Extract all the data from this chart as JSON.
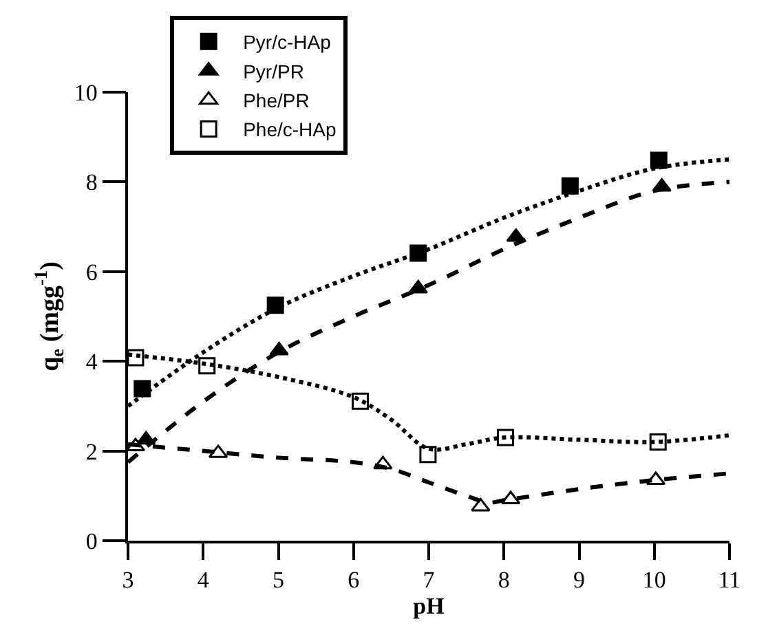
{
  "chart_data": {
    "type": "scatter",
    "xlabel": "pH",
    "ylabel": "q$_{e}$ (mgg$^{-1}$)",
    "xlim": [
      3,
      11
    ],
    "xticks": [
      3,
      4,
      5,
      6,
      7,
      8,
      9,
      10,
      11
    ],
    "ylim": [
      0,
      10
    ],
    "yticks": [
      0,
      2,
      4,
      6,
      8,
      10
    ],
    "legend": "top left",
    "series": [
      {
        "name": "Pyr/c-HAp",
        "marker": "square",
        "color": "#000000",
        "x": [
          3.19,
          4.96,
          6.86,
          8.88,
          10.06
        ],
        "values": [
          3.39,
          5.25,
          6.41,
          7.91,
          8.48
        ]
      },
      {
        "name": "Pyr/PR",
        "marker": "triangle",
        "color": "#000000",
        "x": [
          3.24,
          5.01,
          6.86,
          8.16,
          10.1
        ],
        "values": [
          2.25,
          4.24,
          5.62,
          6.77,
          7.89
        ]
      },
      {
        "name": "Phe/PR",
        "marker": "triangle",
        "color": "#ffffff",
        "x": [
          3.1,
          4.2,
          6.39,
          7.69,
          8.09,
          10.02
        ],
        "values": [
          2.1,
          1.95,
          1.7,
          0.76,
          0.92,
          1.35
        ]
      },
      {
        "name": "Phe/c-HAp",
        "marker": "square",
        "color": "#ffffff",
        "x": [
          3.1,
          4.05,
          6.09,
          6.99,
          8.02,
          10.05
        ],
        "values": [
          4.08,
          3.9,
          3.11,
          1.92,
          2.3,
          2.2
        ]
      },
      {
        "type": "line",
        "line_style": "dotted",
        "color": "#000000",
        "x": [
          3,
          4,
          5,
          6,
          7,
          8,
          9,
          10,
          11
        ],
        "values": [
          3.0,
          4.2,
          5.2,
          5.9,
          6.5,
          7.2,
          7.8,
          8.3,
          8.5
        ]
      },
      {
        "type": "line",
        "line_style": "dashed",
        "color": "#000000",
        "x": [
          3,
          4,
          5,
          6,
          7,
          8,
          9,
          10,
          11
        ],
        "values": [
          1.75,
          3.1,
          4.2,
          5.0,
          5.7,
          6.5,
          7.2,
          7.8,
          8.0
        ]
      },
      {
        "type": "line",
        "line_style": "dashed",
        "color": "#000000",
        "x": [
          3,
          4,
          5,
          6,
          6.5,
          7,
          7.5,
          7.8,
          8,
          9,
          10,
          11
        ],
        "values": [
          2.15,
          2.0,
          1.85,
          1.75,
          1.6,
          1.3,
          1.0,
          0.85,
          0.9,
          1.15,
          1.35,
          1.5
        ]
      },
      {
        "type": "line",
        "line_style": "dotted",
        "color": "#000000",
        "x": [
          3,
          4,
          5,
          6,
          6.5,
          7,
          7.5,
          8,
          9,
          10,
          11
        ],
        "values": [
          4.15,
          3.95,
          3.65,
          3.2,
          2.7,
          2.05,
          2.15,
          2.3,
          2.25,
          2.2,
          2.35
        ]
      }
    ]
  }
}
